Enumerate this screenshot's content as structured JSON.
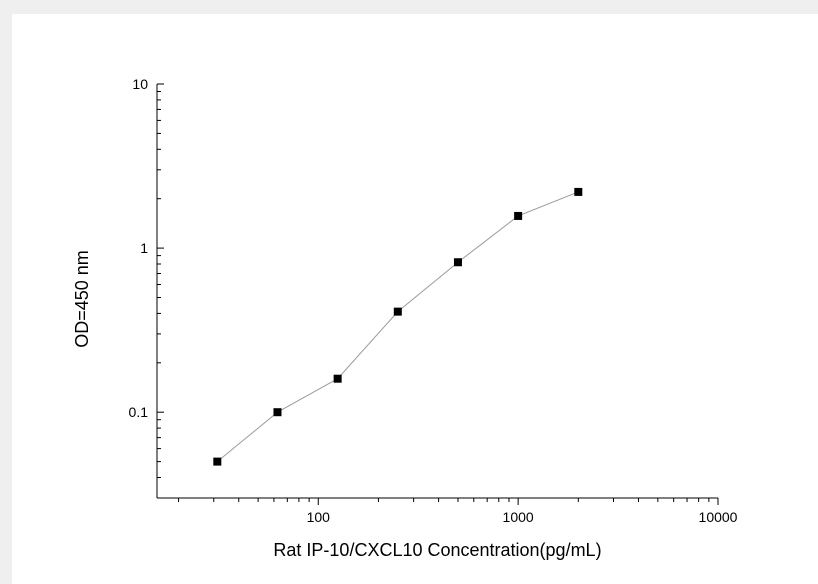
{
  "chart_data": {
    "type": "scatter",
    "xlabel": "Rat IP-10/CXCL10  Concentration(pg/mL)",
    "ylabel": "OD=450 nm",
    "x_scale": "log",
    "y_scale": "log",
    "xlim": [
      15.6,
      10000
    ],
    "ylim": [
      0.03,
      10
    ],
    "x_ticks": [
      {
        "value": 100,
        "label": "100"
      },
      {
        "value": 1000,
        "label": "1000"
      },
      {
        "value": 10000,
        "label": "10000"
      }
    ],
    "y_ticks": [
      {
        "value": 0.1,
        "label": "0.1"
      },
      {
        "value": 1,
        "label": "1"
      },
      {
        "value": 10,
        "label": "10"
      }
    ],
    "grid": false,
    "legend": "none",
    "marker": "square",
    "colors": {
      "marker": "#000000",
      "line": "#9a9a9a",
      "axis": "#000000"
    },
    "series": [
      {
        "x": [
          31.25,
          62.5,
          125,
          250,
          500,
          1000,
          2000
        ],
        "y": [
          0.05,
          0.1,
          0.16,
          0.41,
          0.82,
          1.57,
          2.2
        ]
      }
    ]
  }
}
